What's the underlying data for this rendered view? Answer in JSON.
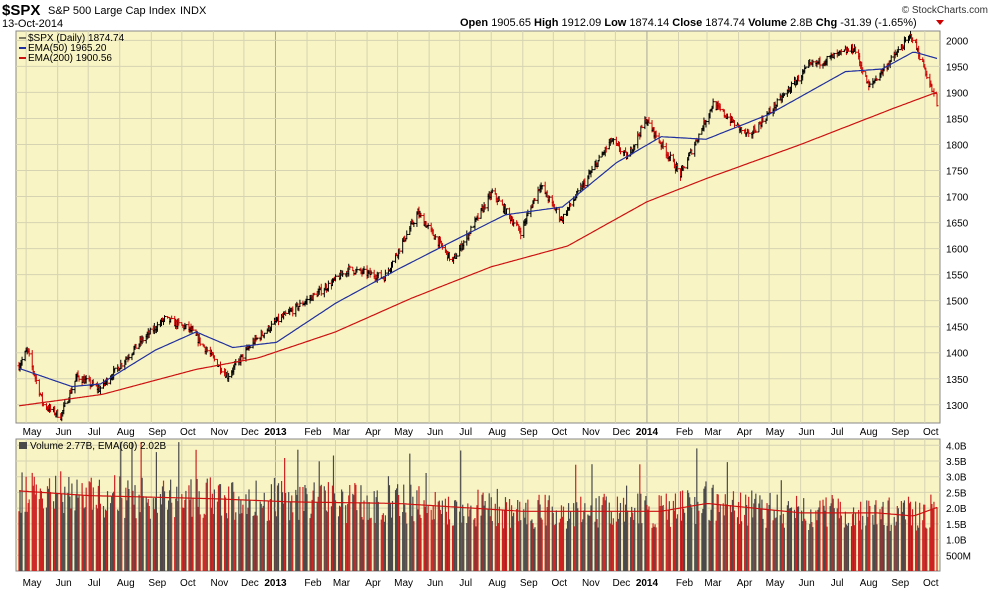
{
  "header": {
    "symbol": "$SPX",
    "name": "S&P 500 Large Cap Index",
    "exchange": "INDX",
    "date": "13-Oct-2014",
    "credit": "© StockCharts.com",
    "quote": {
      "open_label": "Open",
      "open": "1905.65",
      "high_label": "High",
      "high": "1912.09",
      "low_label": "Low",
      "low": "1874.14",
      "close_label": "Close",
      "close": "1874.74",
      "volume_label": "Volume",
      "volume": "2.8B",
      "chg_label": "Chg",
      "chg": "-31.39 (-1.65%)"
    }
  },
  "colors": {
    "panel_bg": "#f8f4c4",
    "price_bar_up": "#000000",
    "price_bar_down": "#cc0000",
    "ema50": "#1f2f9f",
    "ema200": "#cc1111",
    "volume_up": "#4a4a4a",
    "volume_down": "#cc2222",
    "volume_ema": "#cc1111"
  },
  "chart_data": [
    {
      "type": "line",
      "title": "$SPX (Daily) 1874.74",
      "legend": [
        {
          "name": "EMA(50)",
          "value": "1965.20",
          "color": "#1f2f9f"
        },
        {
          "name": "EMA(200)",
          "value": "1900.56",
          "color": "#cc1111"
        }
      ],
      "legend_placement": "top-left",
      "x_tick_labels": [
        "May",
        "Jun",
        "Jul",
        "Aug",
        "Sep",
        "Oct",
        "Nov",
        "Dec",
        "2013",
        "Feb",
        "Mar",
        "Apr",
        "May",
        "Jun",
        "Jul",
        "Aug",
        "Sep",
        "Oct",
        "Nov",
        "Dec",
        "2014",
        "Feb",
        "Mar",
        "Apr",
        "May",
        "Jun",
        "Jul",
        "Aug",
        "Sep",
        "Oct"
      ],
      "y_tick_labels": [
        "1300",
        "1350",
        "1400",
        "1450",
        "1500",
        "1550",
        "1600",
        "1650",
        "1700",
        "1750",
        "1800",
        "1850",
        "1900",
        "1950",
        "2000"
      ],
      "ylim": [
        1265,
        2018
      ],
      "grid": true,
      "y_axis_side": "right",
      "price_keypoints": [
        {
          "date": "2012-04-24",
          "value": 1375
        },
        {
          "date": "2012-05-02",
          "value": 1405
        },
        {
          "date": "2012-05-18",
          "value": 1300
        },
        {
          "date": "2012-06-04",
          "value": 1278
        },
        {
          "date": "2012-06-20",
          "value": 1355
        },
        {
          "date": "2012-07-12",
          "value": 1330
        },
        {
          "date": "2012-08-20",
          "value": 1418
        },
        {
          "date": "2012-09-14",
          "value": 1465
        },
        {
          "date": "2012-10-09",
          "value": 1445
        },
        {
          "date": "2012-11-15",
          "value": 1355
        },
        {
          "date": "2012-12-10",
          "value": 1420
        },
        {
          "date": "2013-01-02",
          "value": 1460
        },
        {
          "date": "2013-02-19",
          "value": 1525
        },
        {
          "date": "2013-03-14",
          "value": 1560
        },
        {
          "date": "2013-04-18",
          "value": 1545
        },
        {
          "date": "2013-05-21",
          "value": 1668
        },
        {
          "date": "2013-06-24",
          "value": 1575
        },
        {
          "date": "2013-08-02",
          "value": 1708
        },
        {
          "date": "2013-08-30",
          "value": 1632
        },
        {
          "date": "2013-09-18",
          "value": 1722
        },
        {
          "date": "2013-10-09",
          "value": 1656
        },
        {
          "date": "2013-11-27",
          "value": 1808
        },
        {
          "date": "2013-12-13",
          "value": 1775
        },
        {
          "date": "2013-12-31",
          "value": 1848
        },
        {
          "date": "2014-02-03",
          "value": 1742
        },
        {
          "date": "2014-03-07",
          "value": 1878
        },
        {
          "date": "2014-04-11",
          "value": 1815
        },
        {
          "date": "2014-06-09",
          "value": 1950
        },
        {
          "date": "2014-07-24",
          "value": 1985
        },
        {
          "date": "2014-08-07",
          "value": 1910
        },
        {
          "date": "2014-09-18",
          "value": 2010
        },
        {
          "date": "2014-10-01",
          "value": 1945
        },
        {
          "date": "2014-10-13",
          "value": 1874.74
        }
      ],
      "ema50_keypoints": [
        {
          "date": "2012-04-24",
          "value": 1370
        },
        {
          "date": "2012-06-15",
          "value": 1335
        },
        {
          "date": "2012-07-13",
          "value": 1340
        },
        {
          "date": "2012-09-05",
          "value": 1405
        },
        {
          "date": "2012-10-15",
          "value": 1440
        },
        {
          "date": "2012-11-20",
          "value": 1410
        },
        {
          "date": "2013-01-02",
          "value": 1420
        },
        {
          "date": "2013-03-01",
          "value": 1495
        },
        {
          "date": "2013-05-01",
          "value": 1560
        },
        {
          "date": "2013-06-25",
          "value": 1615
        },
        {
          "date": "2013-08-15",
          "value": 1665
        },
        {
          "date": "2013-10-10",
          "value": 1680
        },
        {
          "date": "2013-12-02",
          "value": 1765
        },
        {
          "date": "2014-01-15",
          "value": 1815
        },
        {
          "date": "2014-02-28",
          "value": 1810
        },
        {
          "date": "2014-05-01",
          "value": 1858
        },
        {
          "date": "2014-07-15",
          "value": 1940
        },
        {
          "date": "2014-08-20",
          "value": 1945
        },
        {
          "date": "2014-09-20",
          "value": 1978
        },
        {
          "date": "2014-10-13",
          "value": 1965.2
        }
      ],
      "ema200_keypoints": [
        {
          "date": "2012-04-24",
          "value": 1298
        },
        {
          "date": "2012-07-15",
          "value": 1320
        },
        {
          "date": "2012-10-15",
          "value": 1368
        },
        {
          "date": "2012-12-15",
          "value": 1390
        },
        {
          "date": "2013-03-01",
          "value": 1440
        },
        {
          "date": "2013-05-15",
          "value": 1505
        },
        {
          "date": "2013-08-01",
          "value": 1565
        },
        {
          "date": "2013-10-15",
          "value": 1605
        },
        {
          "date": "2014-01-01",
          "value": 1690
        },
        {
          "date": "2014-03-01",
          "value": 1735
        },
        {
          "date": "2014-06-01",
          "value": 1800
        },
        {
          "date": "2014-09-01",
          "value": 1870
        },
        {
          "date": "2014-10-13",
          "value": 1900.56
        }
      ]
    },
    {
      "type": "bar",
      "title": "Volume 2.77B, EMA(60) 2.02B",
      "x_tick_labels": [
        "May",
        "Jun",
        "Jul",
        "Aug",
        "Sep",
        "Oct",
        "Nov",
        "Dec",
        "2013",
        "Feb",
        "Mar",
        "Apr",
        "May",
        "Jun",
        "Jul",
        "Aug",
        "Sep",
        "Oct",
        "Nov",
        "Dec",
        "2014",
        "Feb",
        "Mar",
        "Apr",
        "May",
        "Jun",
        "Jul",
        "Aug",
        "Sep",
        "Oct"
      ],
      "y_tick_labels": [
        "500M",
        "1.0B",
        "1.5B",
        "2.0B",
        "2.5B",
        "3.0B",
        "3.5B",
        "4.0B"
      ],
      "ylim": [
        0,
        4.2
      ],
      "grid": true,
      "y_axis_side": "right",
      "volume_baseline_billions": 1.9,
      "volume_ema_keypoints_billions": [
        {
          "date": "2012-04-24",
          "value": 2.55
        },
        {
          "date": "2012-07-01",
          "value": 2.4
        },
        {
          "date": "2012-11-01",
          "value": 2.3
        },
        {
          "date": "2013-01-15",
          "value": 2.2
        },
        {
          "date": "2013-05-01",
          "value": 2.15
        },
        {
          "date": "2013-09-01",
          "value": 1.9
        },
        {
          "date": "2014-01-15",
          "value": 1.9
        },
        {
          "date": "2014-03-01",
          "value": 2.15
        },
        {
          "date": "2014-06-01",
          "value": 1.85
        },
        {
          "date": "2014-08-15",
          "value": 1.85
        },
        {
          "date": "2014-09-20",
          "value": 1.75
        },
        {
          "date": "2014-10-13",
          "value": 2.02
        }
      ]
    }
  ]
}
